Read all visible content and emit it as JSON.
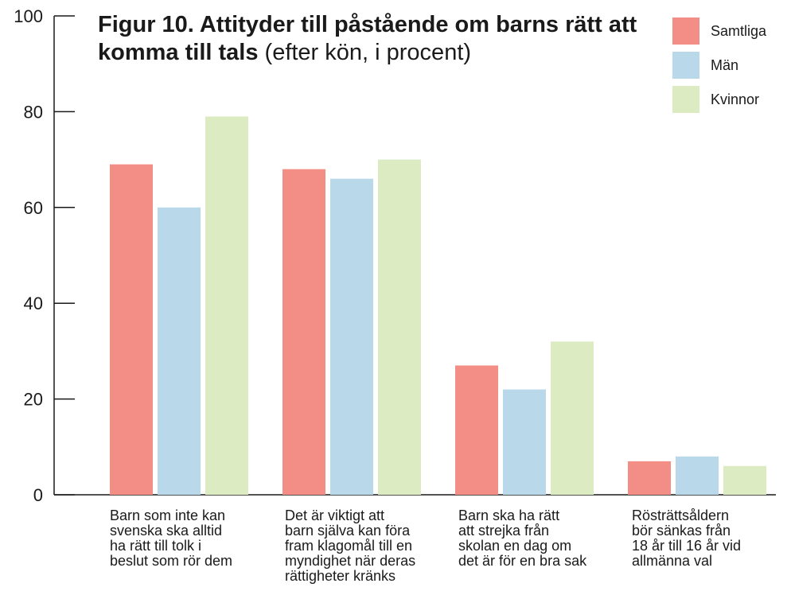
{
  "chart_data": {
    "type": "bar",
    "title": "Figur 10. Attityder till påstående om barns rätt att komma till tals",
    "subtitle": "(efter kön, i procent)",
    "categories": [
      "Barn som inte kan svenska ska alltid ha rätt till tolk i beslut som rör dem",
      "Det är viktigt att barn själva kan föra fram klagomål till en myndighet när deras rättigheter kränks",
      "Barn ska ha rätt att strejka från skolan en dag om det är för en bra sak",
      "Rösträttsåldern bör sänkas från 18 år till 16 år vid allmänna val"
    ],
    "category_lines": [
      [
        "Barn som inte kan",
        "svenska ska alltid",
        "ha rätt till tolk i",
        "beslut som rör dem"
      ],
      [
        "Det är viktigt att",
        "barn själva kan föra",
        "fram klagomål till en",
        "myndighet när deras",
        "rättigheter kränks"
      ],
      [
        "Barn ska ha rätt",
        "att strejka från",
        "skolan en dag om",
        "det är för en bra sak"
      ],
      [
        "Rösträttsåldern",
        "bör sänkas från",
        "18 år till 16 år vid",
        "allmänna val"
      ]
    ],
    "series": [
      {
        "name": "Samtliga",
        "color": "#f28e86",
        "values": [
          69,
          68,
          27,
          7
        ]
      },
      {
        "name": "Män",
        "color": "#b9d9ea",
        "values": [
          60,
          66,
          22,
          8
        ]
      },
      {
        "name": "Kvinnor",
        "color": "#dcebc2",
        "values": [
          79,
          70,
          32,
          6
        ]
      }
    ],
    "ylim": [
      0,
      100
    ],
    "yticks": [
      0,
      20,
      40,
      60,
      80,
      100
    ],
    "legend_position": "top-right",
    "grid": false
  }
}
